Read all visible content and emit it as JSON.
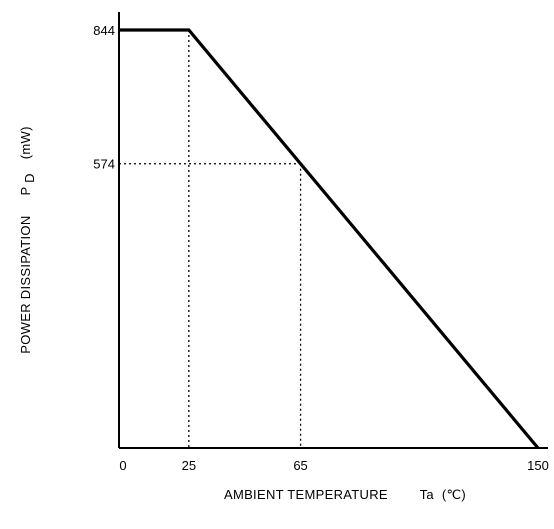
{
  "chart_data": {
    "type": "line",
    "title": "",
    "xlabel": "AMBIENT TEMPERATURE",
    "xlabel_symbol": "Ta",
    "xlabel_unit": "(℃)",
    "ylabel": "POWER DISSIPATION",
    "ylabel_symbol": "P",
    "ylabel_subscript": "D",
    "ylabel_unit": "(mW)",
    "xlim": [
      0,
      150
    ],
    "ylim": [
      0,
      844
    ],
    "x_ticks": [
      {
        "value": 0,
        "label": "0"
      },
      {
        "value": 25,
        "label": "25"
      },
      {
        "value": 65,
        "label": "65"
      },
      {
        "value": 150,
        "label": "150"
      }
    ],
    "y_ticks": [
      {
        "value": 844,
        "label": "844"
      },
      {
        "value": 574,
        "label": "574"
      }
    ],
    "grid": false,
    "series": [
      {
        "x": [
          0,
          25,
          150
        ],
        "y": [
          844,
          844,
          0
        ],
        "color": "#000000"
      }
    ],
    "reference_lines": [
      {
        "x": 25,
        "y": 844
      },
      {
        "x": 65,
        "y": 574
      }
    ]
  }
}
